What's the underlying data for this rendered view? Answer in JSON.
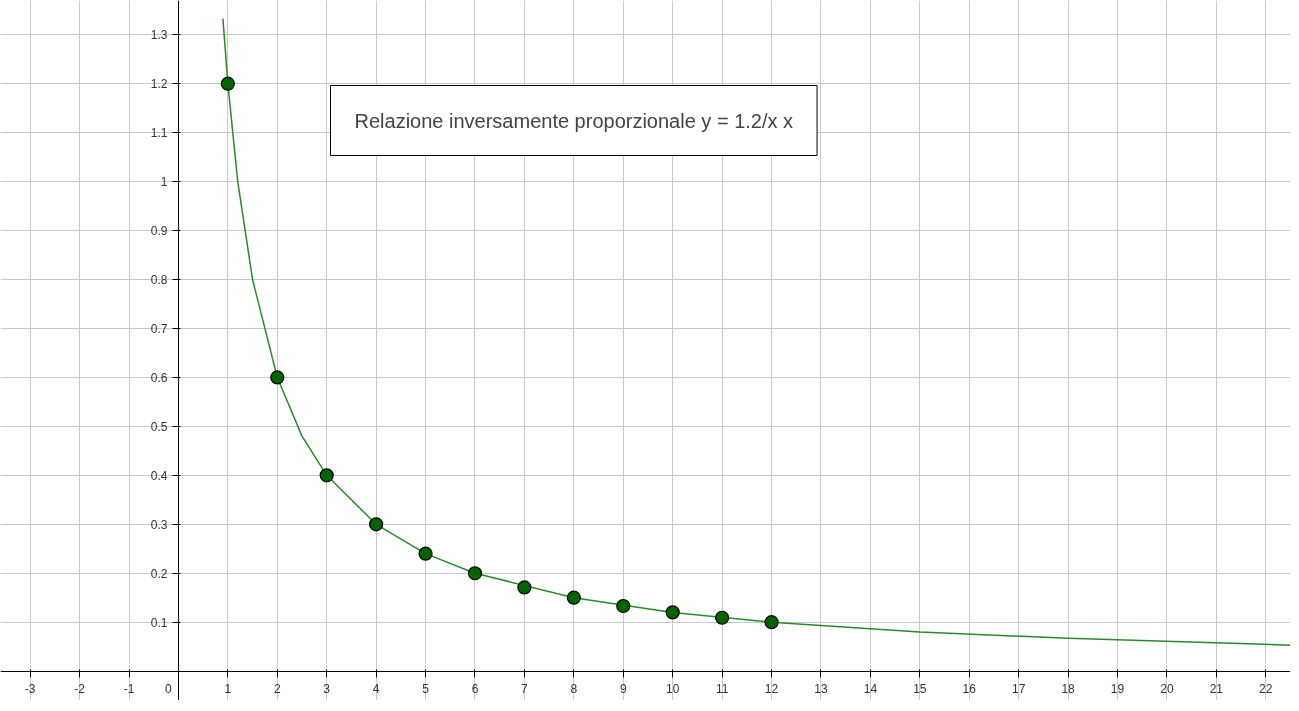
{
  "chart_data": {
    "type": "line",
    "annotations": [
      "Relazione inversamente proporzionale y = 1.2/x x"
    ],
    "xlim": [
      -3.6,
      22.5
    ],
    "ylim": [
      -0.06,
      1.37
    ],
    "xticks": [
      -3,
      -2,
      -1,
      0,
      1,
      2,
      3,
      4,
      5,
      6,
      7,
      8,
      9,
      10,
      11,
      12,
      13,
      14,
      15,
      16,
      17,
      18,
      19,
      20,
      21,
      22
    ],
    "yticks": [
      0.1,
      0.2,
      0.3,
      0.4,
      0.5,
      0.6,
      0.7,
      0.8,
      0.9,
      1,
      1.1,
      1.2,
      1.3
    ],
    "grid": true,
    "series": [
      {
        "color": "#2a8a2a",
        "line_style": "solid",
        "marker": "none",
        "x": [
          0.9,
          1,
          1.2,
          1.5,
          2,
          2.5,
          3,
          4,
          5,
          6,
          8,
          10,
          12,
          15,
          18,
          22.5
        ],
        "values": [
          1.333,
          1.2,
          1.0,
          0.8,
          0.6,
          0.48,
          0.4,
          0.3,
          0.24,
          0.2,
          0.15,
          0.12,
          0.1,
          0.08,
          0.067,
          0.053
        ]
      },
      {
        "type": "scatter",
        "color": "#006400",
        "marker": "circle",
        "x": [
          1,
          2,
          3,
          4,
          5,
          6,
          7,
          8,
          9,
          10,
          11,
          12
        ],
        "values": [
          1.2,
          0.6,
          0.4,
          0.3,
          0.24,
          0.2,
          0.171,
          0.15,
          0.133,
          0.12,
          0.109,
          0.1
        ]
      }
    ]
  }
}
